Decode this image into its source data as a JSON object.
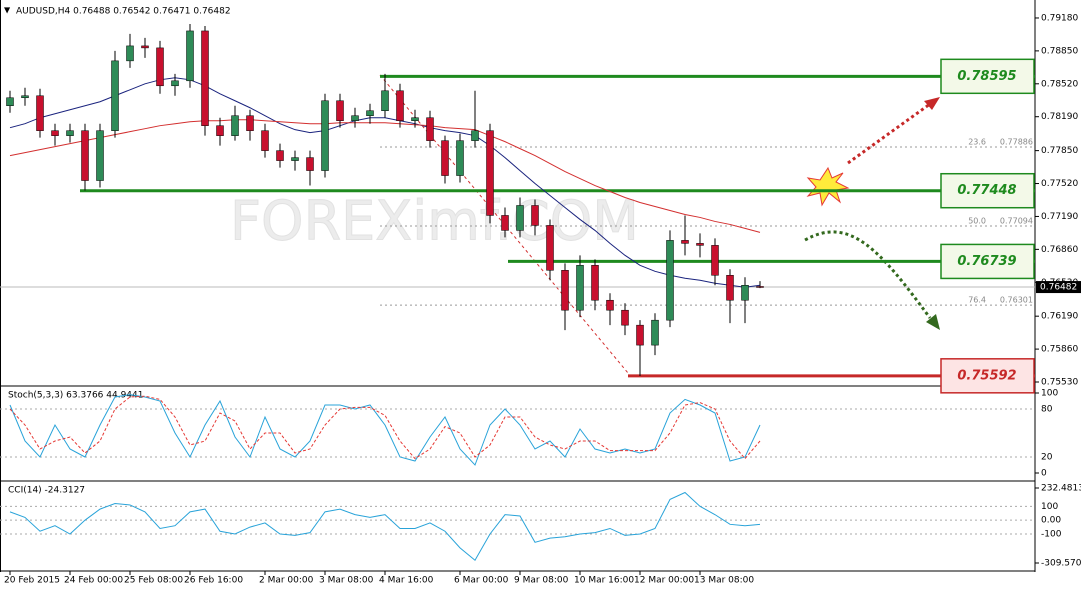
{
  "chart_data": {
    "type": "candlestick",
    "title": "AUDUSD,H4 0.76488 0.76542 0.76471 0.76482",
    "watermark": "FOREXimf.COM",
    "up_color": "#2e8b57",
    "down_color": "#c8102e",
    "categories": [
      "20 Feb 2015",
      null,
      null,
      null,
      "24 Feb 00:00",
      null,
      null,
      null,
      "25 Feb 08:00",
      null,
      null,
      null,
      "26 Feb 16:00",
      null,
      null,
      null,
      null,
      "2 Mar 00:00",
      null,
      null,
      null,
      "3 Mar 08:00",
      null,
      null,
      null,
      "4 Mar 16:00",
      null,
      null,
      null,
      null,
      "6 Mar 00:00",
      null,
      null,
      null,
      "9 Mar 08:00",
      null,
      null,
      null,
      "10 Mar 16:00",
      null,
      null,
      null,
      "12 Mar 00:00",
      null,
      null,
      null,
      "13 Mar 08:00",
      null,
      null,
      null,
      null
    ],
    "open": [
      0.783,
      0.7838,
      0.784,
      0.7805,
      0.78,
      0.7805,
      0.7755,
      0.7805,
      0.7875,
      0.789,
      0.7888,
      0.785,
      0.7855,
      0.7905,
      0.781,
      0.78,
      0.782,
      0.7805,
      0.7785,
      0.7775,
      0.7778,
      0.7765,
      0.7835,
      0.7815,
      0.782,
      0.7825,
      0.7845,
      0.7815,
      0.7818,
      0.7795,
      0.776,
      0.7795,
      0.7805,
      0.772,
      0.7705,
      0.773,
      0.771,
      0.7665,
      0.7625,
      0.767,
      0.7635,
      0.7625,
      0.761,
      0.759,
      0.7615,
      0.7695,
      0.7692,
      0.769,
      0.766,
      0.7635,
      0.76488
    ],
    "high": [
      0.7845,
      0.7848,
      0.7847,
      0.7812,
      0.7812,
      0.7812,
      0.7812,
      0.7885,
      0.7902,
      0.7898,
      0.7895,
      0.7862,
      0.7912,
      0.791,
      0.7818,
      0.783,
      0.7826,
      0.7812,
      0.7792,
      0.7785,
      0.7785,
      0.7842,
      0.7842,
      0.7828,
      0.7832,
      0.7862,
      0.7852,
      0.7826,
      0.7825,
      0.78,
      0.7802,
      0.7845,
      0.7812,
      0.7728,
      0.7738,
      0.7736,
      0.7716,
      0.7672,
      0.768,
      0.7676,
      0.7642,
      0.7632,
      0.7615,
      0.7622,
      0.7705,
      0.772,
      0.7702,
      0.7697,
      0.7666,
      0.7658,
      0.76542
    ],
    "low": [
      0.7823,
      0.783,
      0.7798,
      0.779,
      0.7793,
      0.7745,
      0.7748,
      0.7798,
      0.7868,
      0.7878,
      0.7842,
      0.784,
      0.7848,
      0.78,
      0.779,
      0.7795,
      0.7795,
      0.7778,
      0.7768,
      0.7765,
      0.775,
      0.7758,
      0.7808,
      0.7808,
      0.7812,
      0.7818,
      0.7808,
      0.7808,
      0.7788,
      0.7752,
      0.7753,
      0.7788,
      0.7712,
      0.7698,
      0.7698,
      0.77,
      0.7655,
      0.7605,
      0.7618,
      0.7625,
      0.761,
      0.76,
      0.7559,
      0.758,
      0.7608,
      0.768,
      0.7678,
      0.765,
      0.7612,
      0.7612,
      0.76471
    ],
    "close": [
      0.7838,
      0.784,
      0.7805,
      0.78,
      0.7805,
      0.7755,
      0.7805,
      0.7875,
      0.789,
      0.7888,
      0.785,
      0.7855,
      0.7905,
      0.781,
      0.78,
      0.782,
      0.7805,
      0.7785,
      0.7775,
      0.7778,
      0.7765,
      0.7835,
      0.7815,
      0.782,
      0.7825,
      0.7845,
      0.7815,
      0.7818,
      0.7795,
      0.776,
      0.7795,
      0.7805,
      0.772,
      0.7705,
      0.773,
      0.771,
      0.7665,
      0.7625,
      0.767,
      0.7635,
      0.7625,
      0.761,
      0.759,
      0.7615,
      0.7695,
      0.7692,
      0.769,
      0.766,
      0.7635,
      0.765,
      0.76482
    ],
    "ma": [
      {
        "color": "#1a237e",
        "values": [
          0.7808,
          0.7812,
          0.7818,
          0.7822,
          0.7826,
          0.783,
          0.7834,
          0.784,
          0.7846,
          0.7852,
          0.7856,
          0.7858,
          0.7856,
          0.785,
          0.7842,
          0.7835,
          0.7828,
          0.782,
          0.7812,
          0.7806,
          0.7803,
          0.7805,
          0.781,
          0.7815,
          0.7818,
          0.7818,
          0.7815,
          0.7812,
          0.7808,
          0.7805,
          0.7803,
          0.78,
          0.779,
          0.7778,
          0.7765,
          0.7752,
          0.774,
          0.7728,
          0.7716,
          0.7705,
          0.7692,
          0.768,
          0.767,
          0.7664,
          0.766,
          0.7657,
          0.7655,
          0.7652,
          0.765,
          0.7648,
          0.765
        ]
      },
      {
        "color": "#d32f2f",
        "values": [
          0.778,
          0.7783,
          0.7786,
          0.7789,
          0.7792,
          0.7795,
          0.7798,
          0.7801,
          0.7804,
          0.7807,
          0.781,
          0.7812,
          0.7814,
          0.7815,
          0.7815,
          0.7816,
          0.7816,
          0.7815,
          0.7814,
          0.7813,
          0.7812,
          0.7812,
          0.7813,
          0.7813,
          0.7813,
          0.7813,
          0.7812,
          0.7811,
          0.781,
          0.7808,
          0.7807,
          0.7806,
          0.78,
          0.7794,
          0.7787,
          0.778,
          0.7772,
          0.7764,
          0.7757,
          0.775,
          0.7744,
          0.7738,
          0.7733,
          0.7729,
          0.7725,
          0.7721,
          0.7718,
          0.7714,
          0.7711,
          0.7707,
          0.7703
        ]
      }
    ],
    "ylim": [
      0.755,
      0.7928
    ],
    "yticks": [
      {
        "value": 0.7918,
        "label": "0.79180"
      },
      {
        "value": 0.7885,
        "label": "0.78850"
      },
      {
        "value": 0.7852,
        "label": "0.78520"
      },
      {
        "value": 0.7819,
        "label": "0.78190"
      },
      {
        "value": 0.7785,
        "label": "0.77850"
      },
      {
        "value": 0.7752,
        "label": "0.77520"
      },
      {
        "value": 0.7719,
        "label": "0.77190"
      },
      {
        "value": 0.7686,
        "label": "0.76860"
      },
      {
        "value": 0.7653,
        "label": "0.76530"
      },
      {
        "value": 0.7619,
        "label": "0.76190"
      },
      {
        "value": 0.7586,
        "label": "0.75860"
      },
      {
        "value": 0.7553,
        "label": "0.75530"
      }
    ],
    "current_price": 0.76482,
    "levels": [
      {
        "value": 0.78595,
        "color": "#1e8a1e"
      },
      {
        "value": 0.77448,
        "color": "#1e8a1e"
      },
      {
        "value": 0.76739,
        "color": "#1e8a1e"
      },
      {
        "value": 0.75592,
        "color": "#c62828"
      }
    ],
    "fib": [
      {
        "ratio": 23.6,
        "price": 0.77886
      },
      {
        "ratio": {
          "value": 50,
          "label": "50.0"
        },
        "price": 0.77094
      },
      {
        "ratio": 76.4,
        "price": 0.76301
      }
    ],
    "stoch": {
      "label": "Stoch(5,3,3) 63.3766 44.9441",
      "ylim": [
        0,
        100
      ],
      "yticks": [
        100,
        80,
        20,
        0
      ],
      "main": [
        85,
        40,
        20,
        60,
        30,
        20,
        60,
        95,
        98,
        95,
        90,
        50,
        20,
        60,
        90,
        45,
        20,
        70,
        30,
        20,
        40,
        85,
        85,
        80,
        85,
        60,
        20,
        15,
        45,
        70,
        30,
        10,
        60,
        80,
        60,
        30,
        40,
        20,
        55,
        30,
        25,
        30,
        25,
        30,
        75,
        92,
        85,
        75,
        15,
        20,
        60
      ],
      "signal": [
        80,
        60,
        30,
        40,
        45,
        25,
        40,
        80,
        95,
        96,
        92,
        70,
        35,
        40,
        75,
        65,
        30,
        50,
        50,
        25,
        30,
        60,
        80,
        82,
        82,
        72,
        40,
        18,
        30,
        58,
        50,
        20,
        35,
        70,
        70,
        45,
        35,
        30,
        40,
        40,
        28,
        28,
        28,
        28,
        50,
        85,
        88,
        80,
        40,
        18,
        40
      ]
    },
    "cci": {
      "label": "CCI(14) -24.3127",
      "ylim": [
        -309.5705,
        232.4813
      ],
      "yticks": [
        232.4813,
        100,
        {
          "value": 0,
          "label": "0.00"
        },
        -100,
        -309.5705
      ],
      "values": [
        60,
        20,
        -80,
        -40,
        -100,
        0,
        80,
        120,
        110,
        60,
        -60,
        -40,
        60,
        80,
        -80,
        -100,
        -50,
        -20,
        -100,
        -110,
        -90,
        60,
        80,
        40,
        20,
        40,
        -60,
        -60,
        -20,
        -80,
        -200,
        -290,
        -100,
        40,
        30,
        -160,
        -130,
        -120,
        -100,
        -90,
        -60,
        -110,
        -100,
        -60,
        150,
        200,
        100,
        40,
        -30,
        -40,
        -30
      ]
    }
  }
}
